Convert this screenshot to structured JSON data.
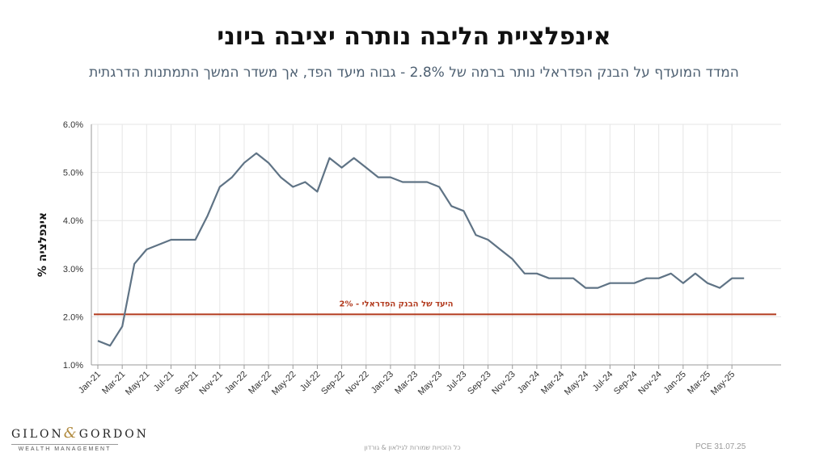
{
  "title": "אינפלציית הליבה נותרה יציבה ביוני",
  "subtitle": "המדד המועדף על הבנק הפדראלי נותר ברמה של 2.8% - גבוה מיעד הפד, אך משדר המשך התמתנות הדרגתית",
  "footer": {
    "logo_main_left": "GILON",
    "logo_amp": "&",
    "logo_main_right": "GORDON",
    "logo_sub": "WEALTH MANAGEMENT",
    "copyright": "כל הזכויות שמורות לגילאון & גורדון",
    "source": "PCE 31.07.25"
  },
  "colors": {
    "series": "#5f7385",
    "target": "#b23a1e",
    "grid": "#e6e6e6"
  },
  "chart_data": {
    "type": "line",
    "ylabel": "% אינפלציה",
    "ylim": [
      1.0,
      6.0
    ],
    "yticks": [
      "1.0%",
      "2.0%",
      "3.0%",
      "4.0%",
      "5.0%",
      "6.0%"
    ],
    "x": [
      "Jan-21",
      "Feb-21",
      "Mar-21",
      "Apr-21",
      "May-21",
      "Jun-21",
      "Jul-21",
      "Aug-21",
      "Sep-21",
      "Oct-21",
      "Nov-21",
      "Dec-21",
      "Jan-22",
      "Feb-22",
      "Mar-22",
      "Apr-22",
      "May-22",
      "Jun-22",
      "Jul-22",
      "Aug-22",
      "Sep-22",
      "Oct-22",
      "Nov-22",
      "Dec-22",
      "Jan-23",
      "Feb-23",
      "Mar-23",
      "Apr-23",
      "May-23",
      "Jun-23",
      "Jul-23",
      "Aug-23",
      "Sep-23",
      "Oct-23",
      "Nov-23",
      "Dec-23",
      "Jan-24",
      "Feb-24",
      "Mar-24",
      "Apr-24",
      "May-24",
      "Jun-24",
      "Jul-24",
      "Aug-24",
      "Sep-24",
      "Oct-24",
      "Nov-24",
      "Dec-24",
      "Jan-25",
      "Feb-25",
      "Mar-25",
      "Apr-25",
      "May-25",
      "Jun-25"
    ],
    "xtick_labels": [
      "Jan-21",
      "Mar-21",
      "May-21",
      "Jul-21",
      "Sep-21",
      "Nov-21",
      "Jan-22",
      "Mar-22",
      "May-22",
      "Jul-22",
      "Sep-22",
      "Nov-22",
      "Jan-23",
      "Mar-23",
      "May-23",
      "Jul-23",
      "Sep-23",
      "Nov-23",
      "Jan-24",
      "Mar-24",
      "May-24",
      "Jul-24",
      "Sep-24",
      "Nov-24",
      "Jan-25",
      "Mar-25",
      "May-25"
    ],
    "series": [
      {
        "values": [
          1.5,
          1.4,
          1.8,
          3.1,
          3.4,
          3.5,
          3.6,
          3.6,
          3.6,
          4.1,
          4.7,
          4.9,
          5.2,
          5.4,
          5.2,
          4.9,
          4.7,
          4.8,
          4.6,
          5.3,
          5.1,
          5.3,
          5.1,
          4.9,
          4.9,
          4.8,
          4.8,
          4.8,
          4.7,
          4.3,
          4.2,
          3.7,
          3.6,
          3.4,
          3.2,
          2.9,
          2.9,
          2.8,
          2.8,
          2.8,
          2.6,
          2.6,
          2.7,
          2.7,
          2.7,
          2.8,
          2.8,
          2.9,
          2.7,
          2.9,
          2.7,
          2.6,
          2.8,
          2.8
        ]
      }
    ],
    "target_line": {
      "value": 2.05,
      "label": "היעד של הבנק הפדראלי - 2%"
    },
    "grid": true
  }
}
